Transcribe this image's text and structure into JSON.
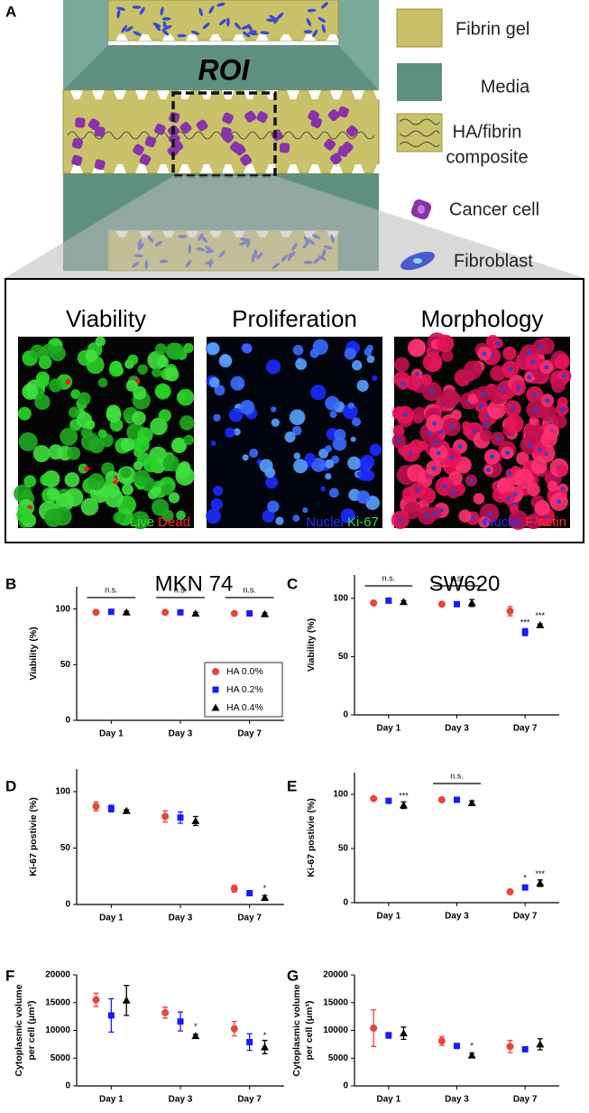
{
  "figure_a": {
    "panel": "A",
    "roi": "ROI",
    "legend": [
      {
        "lines": [
          "Fibrin gel"
        ]
      },
      {
        "lines": [
          "Media"
        ]
      },
      {
        "lines": [
          "HA/fibrin",
          "composite"
        ]
      },
      {
        "lines": [
          "Cancer cell"
        ]
      },
      {
        "lines": [
          "Fibroblast"
        ]
      }
    ]
  },
  "imaging": {
    "panels": [
      {
        "title": "Viability",
        "stains": [
          {
            "text": "Live",
            "color": "#33dd33"
          },
          {
            "text": "Dead",
            "color": "#ff2a2a"
          }
        ]
      },
      {
        "title": "Proliferation",
        "stains": [
          {
            "text": "Nuclei",
            "color": "#2233ff"
          },
          {
            "text": "Ki-67",
            "color": "#33dd33"
          }
        ]
      },
      {
        "title": "Morphology",
        "stains": [
          {
            "text": "Nuclei",
            "color": "#2233ff"
          },
          {
            "text": "F-actin",
            "color": "#ff2a2a"
          }
        ]
      }
    ]
  },
  "chart_data": [
    {
      "type": "errorbar",
      "panel": "B",
      "title": "MKN 74",
      "ylabel": [
        "Viability (%)"
      ],
      "categories": [
        "Day 1",
        "Day 3",
        "Day 7"
      ],
      "ylim": [
        0,
        120
      ],
      "yticks": [
        0,
        50,
        100
      ],
      "legend": "lower right",
      "brackets": [
        "n.s.",
        "n.s.",
        "n.s."
      ],
      "series": [
        {
          "name": "HA 0.0%",
          "color": "#e8443a",
          "marker": "circle",
          "values": [
            97,
            97,
            96
          ],
          "errors": [
            1,
            1,
            1
          ],
          "stars": [
            null,
            null,
            null
          ]
        },
        {
          "name": "HA 0.2%",
          "color": "#1a1aff",
          "marker": "square",
          "values": [
            97.5,
            97,
            96
          ],
          "errors": [
            1,
            1,
            1
          ],
          "stars": [
            null,
            null,
            null
          ]
        },
        {
          "name": "HA 0.4%",
          "color": "#000000",
          "marker": "triangle",
          "values": [
            97,
            96,
            95.5
          ],
          "errors": [
            1,
            1,
            1
          ],
          "stars": [
            null,
            null,
            null
          ]
        }
      ]
    },
    {
      "type": "errorbar",
      "panel": "C",
      "title": "SW620",
      "ylabel": [
        "Viability (%)"
      ],
      "categories": [
        "Day 1",
        "Day 3",
        "Day 7"
      ],
      "ylim": [
        0,
        120
      ],
      "yticks": [
        0,
        50,
        100
      ],
      "brackets": [
        "n.s.",
        "n.s.",
        null
      ],
      "series": [
        {
          "name": "HA 0.0%",
          "color": "#e8443a",
          "marker": "circle",
          "values": [
            96,
            95,
            89
          ],
          "errors": [
            1,
            1,
            4
          ],
          "stars": [
            null,
            null,
            null
          ]
        },
        {
          "name": "HA 0.2%",
          "color": "#1a1aff",
          "marker": "square",
          "values": [
            98,
            95,
            71
          ],
          "errors": [
            1,
            1,
            3
          ],
          "stars": [
            null,
            null,
            "***"
          ]
        },
        {
          "name": "HA 0.4%",
          "color": "#000000",
          "marker": "triangle",
          "values": [
            97,
            96,
            77
          ],
          "errors": [
            1,
            3,
            1
          ],
          "stars": [
            null,
            null,
            "***"
          ]
        }
      ]
    },
    {
      "type": "errorbar",
      "panel": "D",
      "ylabel": [
        "Ki-67 postivie (%)"
      ],
      "categories": [
        "Day 1",
        "Day 3",
        "Day 7"
      ],
      "ylim": [
        0,
        120
      ],
      "yticks": [
        0,
        50,
        100
      ],
      "brackets": [
        null,
        null,
        null
      ],
      "series": [
        {
          "name": "HA 0.0%",
          "color": "#e8443a",
          "marker": "circle",
          "values": [
            87,
            78,
            14
          ],
          "errors": [
            4,
            5,
            3
          ],
          "stars": [
            null,
            null,
            null
          ]
        },
        {
          "name": "HA 0.2%",
          "color": "#1a1aff",
          "marker": "square",
          "values": [
            85,
            77,
            10
          ],
          "errors": [
            3,
            5,
            1
          ],
          "stars": [
            null,
            null,
            null
          ]
        },
        {
          "name": "HA 0.4%",
          "color": "#000000",
          "marker": "triangle",
          "values": [
            83,
            74,
            6
          ],
          "errors": [
            1,
            4,
            2
          ],
          "stars": [
            null,
            null,
            "*"
          ]
        }
      ]
    },
    {
      "type": "errorbar",
      "panel": "E",
      "ylabel": [
        "Ki-67 postivie (%)"
      ],
      "categories": [
        "Day 1",
        "Day 3",
        "Day 7"
      ],
      "ylim": [
        0,
        120
      ],
      "yticks": [
        0,
        50,
        100
      ],
      "brackets": [
        null,
        "n.s.",
        null
      ],
      "series": [
        {
          "name": "HA 0.0%",
          "color": "#e8443a",
          "marker": "circle",
          "values": [
            96,
            95,
            10
          ],
          "errors": [
            1,
            1,
            1
          ],
          "stars": [
            null,
            null,
            null
          ]
        },
        {
          "name": "HA 0.2%",
          "color": "#1a1aff",
          "marker": "square",
          "values": [
            94,
            95,
            14
          ],
          "errors": [
            1,
            1,
            2
          ],
          "stars": [
            null,
            null,
            "*"
          ]
        },
        {
          "name": "HA 0.4%",
          "color": "#000000",
          "marker": "triangle",
          "values": [
            90,
            92,
            18
          ],
          "errors": [
            3,
            2,
            3
          ],
          "stars": [
            "***",
            null,
            "***"
          ]
        }
      ]
    },
    {
      "type": "errorbar",
      "panel": "F",
      "ylabel": [
        "Cytoplasmic volume",
        "per cell (μm³)"
      ],
      "categories": [
        "Day 1",
        "Day 3",
        "Day 7"
      ],
      "ylim": [
        0,
        20000
      ],
      "yticks": [
        0,
        5000,
        10000,
        15000,
        20000
      ],
      "brackets": [
        null,
        null,
        null
      ],
      "series": [
        {
          "name": "HA 0.0%",
          "color": "#e8443a",
          "marker": "circle",
          "values": [
            15500,
            13200,
            10300
          ],
          "errors": [
            1200,
            1000,
            1300
          ],
          "stars": [
            null,
            null,
            null
          ]
        },
        {
          "name": "HA 0.2%",
          "color": "#1a1aff",
          "marker": "square",
          "values": [
            12700,
            11600,
            7900
          ],
          "errors": [
            3000,
            1700,
            1500
          ],
          "stars": [
            null,
            null,
            null
          ]
        },
        {
          "name": "HA 0.4%",
          "color": "#000000",
          "marker": "triangle",
          "values": [
            15400,
            9000,
            7000
          ],
          "errors": [
            2700,
            300,
            1200
          ],
          "stars": [
            null,
            "*",
            "*"
          ]
        }
      ]
    },
    {
      "type": "errorbar",
      "panel": "G",
      "ylabel": [
        "Cytoplasmic volume",
        "per cell (μm³)"
      ],
      "categories": [
        "Day 1",
        "Day 3",
        "Day 7"
      ],
      "ylim": [
        0,
        20000
      ],
      "yticks": [
        0,
        5000,
        10000,
        15000,
        20000
      ],
      "brackets": [
        null,
        null,
        null
      ],
      "series": [
        {
          "name": "HA 0.0%",
          "color": "#e8443a",
          "marker": "circle",
          "values": [
            10400,
            8100,
            7100
          ],
          "errors": [
            3300,
            800,
            1100
          ],
          "stars": [
            null,
            null,
            null
          ]
        },
        {
          "name": "HA 0.2%",
          "color": "#1a1aff",
          "marker": "square",
          "values": [
            9100,
            7200,
            6600
          ],
          "errors": [
            500,
            300,
            300
          ],
          "stars": [
            null,
            null,
            null
          ]
        },
        {
          "name": "HA 0.4%",
          "color": "#000000",
          "marker": "triangle",
          "values": [
            9500,
            5500,
            7500
          ],
          "errors": [
            1100,
            400,
            1000
          ],
          "stars": [
            null,
            "*",
            null
          ]
        }
      ]
    }
  ]
}
